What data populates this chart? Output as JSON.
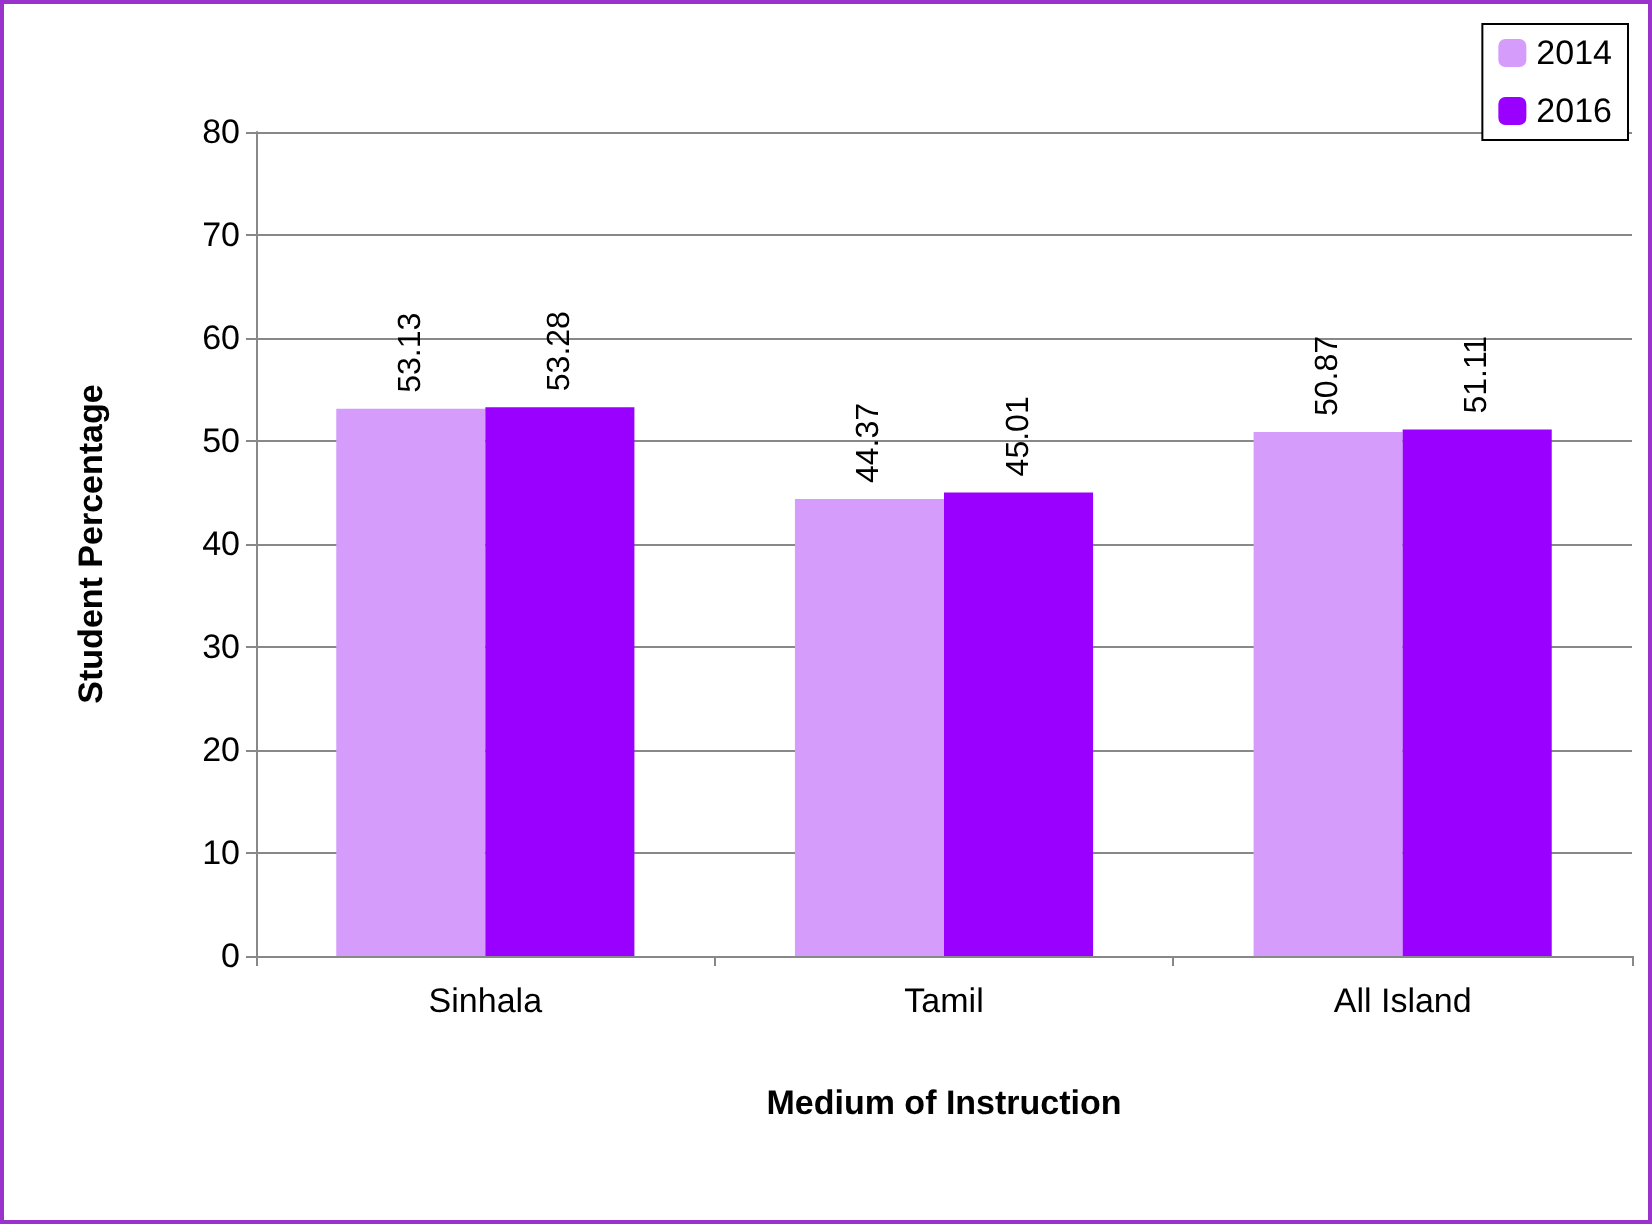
{
  "chart_data": {
    "type": "bar",
    "xlabel": "Medium of Instruction",
    "ylabel": "Student Percentage",
    "categories": [
      "Sinhala",
      "Tamil",
      "All Island"
    ],
    "series": [
      {
        "name": "2014",
        "color": "#d59cfc",
        "values": [
          53.13,
          44.37,
          50.87
        ]
      },
      {
        "name": "2016",
        "color": "#9900ff",
        "values": [
          53.28,
          45.01,
          51.11
        ]
      }
    ],
    "ylim": [
      0,
      80
    ],
    "yticks": [
      0,
      10,
      20,
      30,
      40,
      50,
      60,
      70,
      80
    ],
    "grid": "y",
    "legend": "top right",
    "data_labels": true
  }
}
